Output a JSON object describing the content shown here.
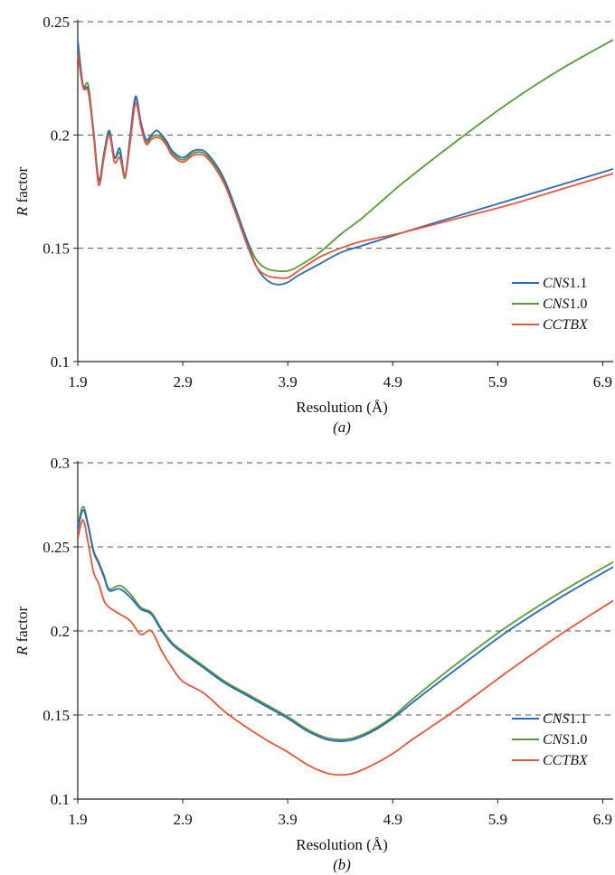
{
  "chart_data": [
    {
      "type": "line",
      "panel_label": "(a)",
      "xlabel": "Resolution (Å)",
      "ylabel_italic": "R",
      "ylabel_rest": " factor",
      "xlim": [
        1.9,
        7.0
      ],
      "ylim": [
        0.1,
        0.25
      ],
      "xticks": [
        1.9,
        2.9,
        3.9,
        4.9,
        5.9,
        6.9
      ],
      "xtick_labels": [
        "1.9",
        "2.9",
        "3.9",
        "4.9",
        "5.9",
        "6.9"
      ],
      "yticks": [
        0.1,
        0.15,
        0.2,
        0.25
      ],
      "ytick_labels": [
        "0.1",
        "0.15",
        "0.2",
        "0.25"
      ],
      "grid": "horizontal dashed",
      "legend_position": "bottom-right",
      "series": [
        {
          "name_italic": "CNS",
          "name_rest": "1.1",
          "color": "#2a6ab8",
          "x": [
            1.9,
            1.95,
            2.0,
            2.05,
            2.1,
            2.15,
            2.2,
            2.25,
            2.3,
            2.35,
            2.4,
            2.45,
            2.5,
            2.55,
            2.6,
            2.65,
            2.7,
            2.75,
            2.8,
            2.9,
            3.0,
            3.1,
            3.2,
            3.3,
            3.4,
            3.5,
            3.6,
            3.7,
            3.8,
            3.9,
            4.0,
            4.2,
            4.4,
            4.6,
            4.8,
            5.0,
            5.5,
            6.0,
            6.5,
            7.0
          ],
          "y": [
            0.242,
            0.222,
            0.22,
            0.202,
            0.18,
            0.192,
            0.202,
            0.19,
            0.194,
            0.182,
            0.2,
            0.217,
            0.206,
            0.198,
            0.2,
            0.202,
            0.2,
            0.197,
            0.193,
            0.19,
            0.193,
            0.193,
            0.188,
            0.18,
            0.168,
            0.155,
            0.142,
            0.136,
            0.134,
            0.135,
            0.138,
            0.143,
            0.148,
            0.151,
            0.154,
            0.157,
            0.164,
            0.171,
            0.178,
            0.185
          ]
        },
        {
          "name_italic": "CNS",
          "name_rest": "1.0",
          "color": "#5a9a3a",
          "x": [
            1.9,
            1.95,
            2.0,
            2.05,
            2.1,
            2.15,
            2.2,
            2.25,
            2.3,
            2.35,
            2.4,
            2.45,
            2.5,
            2.55,
            2.6,
            2.65,
            2.7,
            2.75,
            2.8,
            2.9,
            3.0,
            3.1,
            3.2,
            3.3,
            3.4,
            3.5,
            3.6,
            3.7,
            3.8,
            3.9,
            4.0,
            4.2,
            4.4,
            4.6,
            4.8,
            5.0,
            5.5,
            6.0,
            6.5,
            7.0
          ],
          "y": [
            0.24,
            0.222,
            0.222,
            0.201,
            0.18,
            0.191,
            0.201,
            0.19,
            0.192,
            0.181,
            0.199,
            0.216,
            0.205,
            0.197,
            0.199,
            0.2,
            0.199,
            0.196,
            0.192,
            0.189,
            0.192,
            0.192,
            0.187,
            0.179,
            0.167,
            0.155,
            0.145,
            0.141,
            0.14,
            0.14,
            0.142,
            0.148,
            0.156,
            0.163,
            0.171,
            0.179,
            0.197,
            0.214,
            0.229,
            0.242
          ]
        },
        {
          "name_italic": "CCTBX",
          "name_rest": "",
          "color": "#e8553a",
          "x": [
            1.9,
            1.95,
            2.0,
            2.05,
            2.1,
            2.15,
            2.2,
            2.25,
            2.3,
            2.35,
            2.4,
            2.45,
            2.5,
            2.55,
            2.6,
            2.65,
            2.7,
            2.75,
            2.8,
            2.9,
            3.0,
            3.1,
            3.2,
            3.3,
            3.4,
            3.5,
            3.6,
            3.7,
            3.8,
            3.9,
            4.0,
            4.2,
            4.4,
            4.6,
            4.8,
            5.0,
            5.5,
            6.0,
            6.5,
            7.0
          ],
          "y": [
            0.236,
            0.221,
            0.219,
            0.2,
            0.178,
            0.19,
            0.2,
            0.188,
            0.19,
            0.182,
            0.197,
            0.214,
            0.204,
            0.196,
            0.198,
            0.199,
            0.198,
            0.195,
            0.191,
            0.188,
            0.191,
            0.191,
            0.186,
            0.178,
            0.166,
            0.153,
            0.142,
            0.138,
            0.137,
            0.137,
            0.14,
            0.146,
            0.15,
            0.153,
            0.155,
            0.157,
            0.163,
            0.169,
            0.176,
            0.183
          ]
        }
      ]
    },
    {
      "type": "line",
      "panel_label": "(b)",
      "xlabel": "Resolution (Å)",
      "ylabel_italic": "R",
      "ylabel_rest": " factor",
      "xlim": [
        1.9,
        7.0
      ],
      "ylim": [
        0.1,
        0.3
      ],
      "xticks": [
        1.9,
        2.9,
        3.9,
        4.9,
        5.9,
        6.9
      ],
      "xtick_labels": [
        "1.9",
        "2.9",
        "3.9",
        "4.9",
        "5.9",
        "6.9"
      ],
      "yticks": [
        0.1,
        0.15,
        0.2,
        0.25,
        0.3
      ],
      "ytick_labels": [
        "0.1",
        "0.15",
        "0.2",
        "0.25",
        "0.3"
      ],
      "grid": "horizontal dashed",
      "legend_position": "bottom-right",
      "series": [
        {
          "name_italic": "CNS",
          "name_rest": "1.1",
          "color": "#2a6ab8",
          "x": [
            1.9,
            1.95,
            2.0,
            2.05,
            2.1,
            2.15,
            2.2,
            2.3,
            2.4,
            2.5,
            2.6,
            2.7,
            2.8,
            2.9,
            3.1,
            3.3,
            3.5,
            3.7,
            3.9,
            4.1,
            4.3,
            4.5,
            4.7,
            4.9,
            5.1,
            5.5,
            6.0,
            6.5,
            7.0
          ],
          "y": [
            0.26,
            0.272,
            0.262,
            0.247,
            0.24,
            0.232,
            0.224,
            0.225,
            0.22,
            0.213,
            0.21,
            0.2,
            0.192,
            0.187,
            0.178,
            0.169,
            0.162,
            0.155,
            0.148,
            0.14,
            0.135,
            0.135,
            0.14,
            0.148,
            0.158,
            0.177,
            0.2,
            0.22,
            0.238
          ]
        },
        {
          "name_italic": "CNS",
          "name_rest": "1.0",
          "color": "#5a9a3a",
          "x": [
            1.9,
            1.95,
            2.0,
            2.05,
            2.1,
            2.15,
            2.2,
            2.3,
            2.4,
            2.5,
            2.6,
            2.7,
            2.8,
            2.9,
            3.1,
            3.3,
            3.5,
            3.7,
            3.9,
            4.1,
            4.3,
            4.5,
            4.7,
            4.9,
            5.1,
            5.5,
            6.0,
            6.5,
            7.0
          ],
          "y": [
            0.262,
            0.274,
            0.263,
            0.248,
            0.241,
            0.233,
            0.225,
            0.227,
            0.222,
            0.214,
            0.211,
            0.201,
            0.193,
            0.188,
            0.179,
            0.17,
            0.163,
            0.156,
            0.149,
            0.141,
            0.136,
            0.136,
            0.141,
            0.149,
            0.16,
            0.18,
            0.203,
            0.223,
            0.241
          ]
        },
        {
          "name_italic": "CCTBX",
          "name_rest": "",
          "color": "#e8553a",
          "x": [
            1.9,
            1.95,
            2.0,
            2.05,
            2.1,
            2.15,
            2.2,
            2.3,
            2.4,
            2.5,
            2.6,
            2.7,
            2.8,
            2.9,
            3.1,
            3.3,
            3.5,
            3.7,
            3.9,
            4.1,
            4.3,
            4.5,
            4.7,
            4.9,
            5.1,
            5.5,
            6.0,
            6.5,
            7.0
          ],
          "y": [
            0.255,
            0.266,
            0.252,
            0.235,
            0.228,
            0.218,
            0.214,
            0.21,
            0.206,
            0.198,
            0.2,
            0.188,
            0.178,
            0.17,
            0.163,
            0.152,
            0.143,
            0.135,
            0.128,
            0.12,
            0.115,
            0.115,
            0.12,
            0.127,
            0.136,
            0.153,
            0.176,
            0.198,
            0.218
          ]
        }
      ]
    }
  ]
}
